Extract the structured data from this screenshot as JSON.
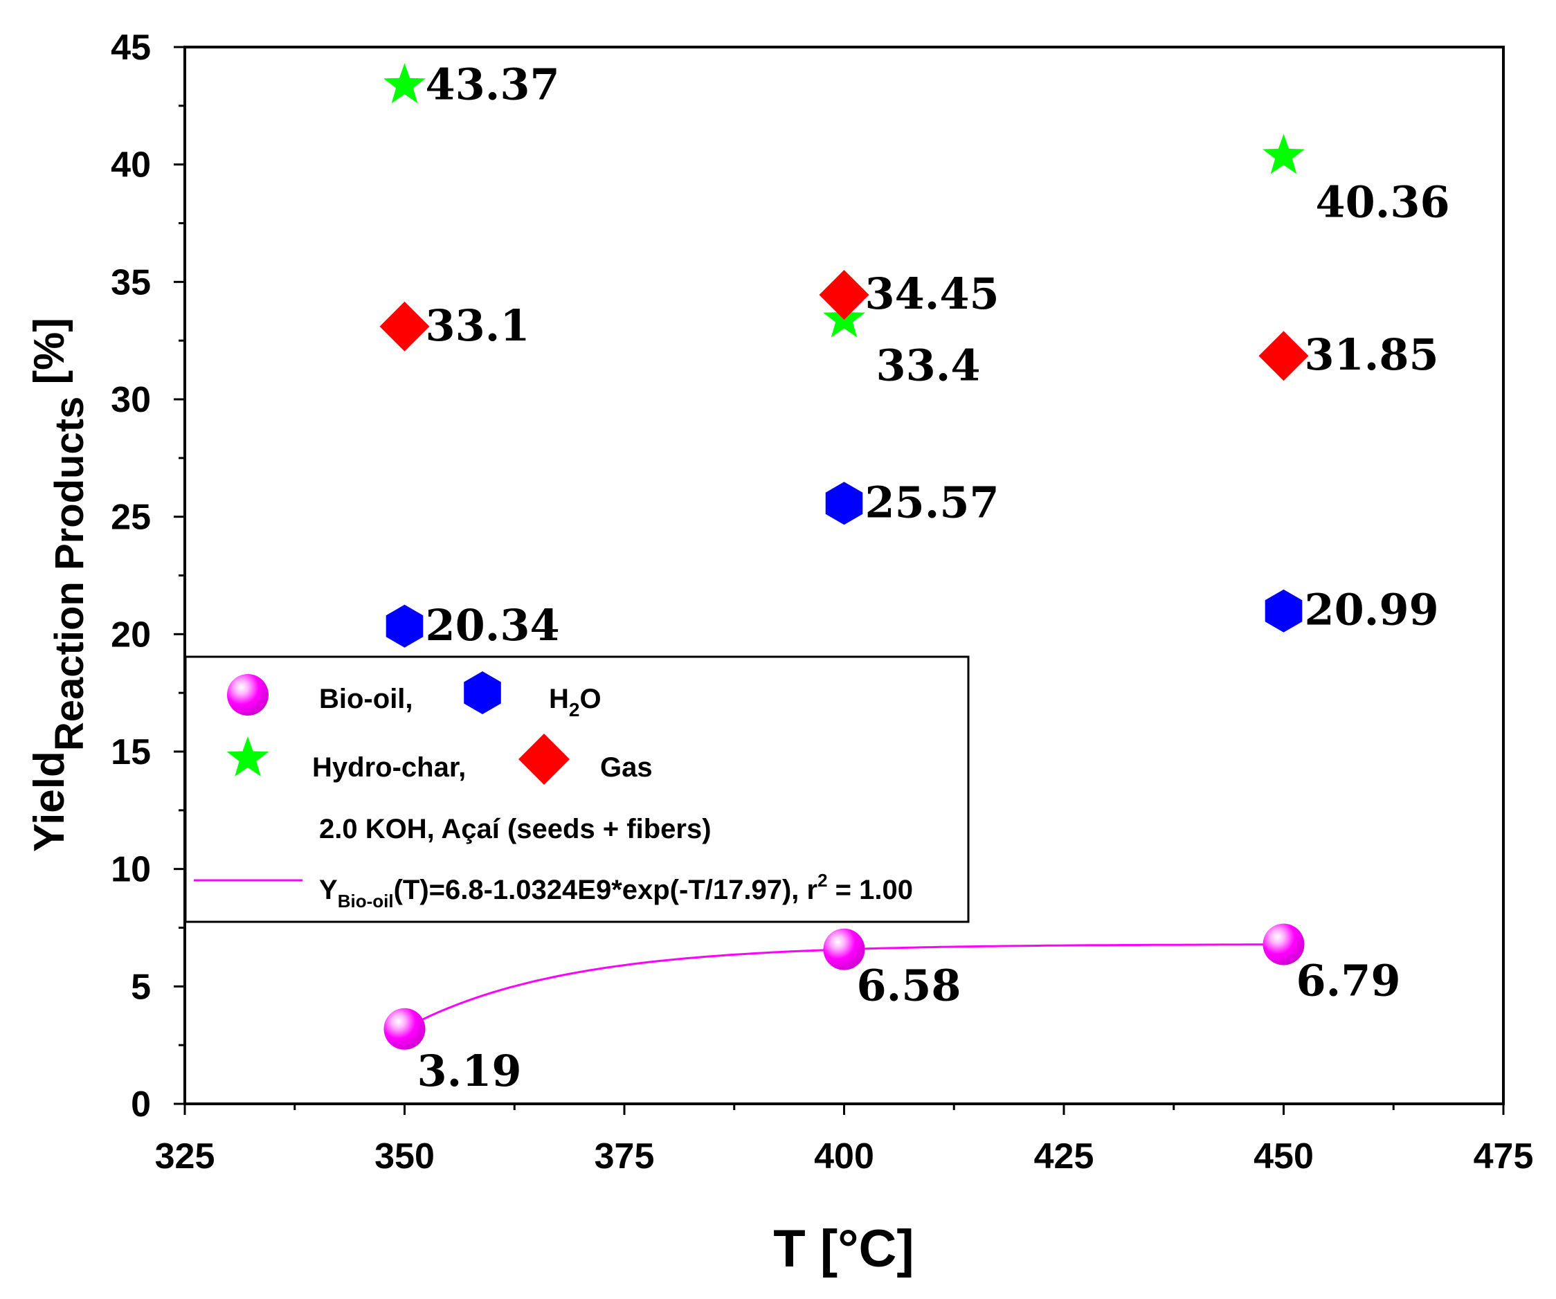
{
  "chart_data": {
    "type": "scatter",
    "xlabel": "T [°C]",
    "ylabel": {
      "main": "Yield",
      "sub": "Reaction Products",
      "tail": " [%]"
    },
    "xlim": [
      325,
      475
    ],
    "ylim": [
      0,
      45
    ],
    "x_ticks": [
      "325",
      "350",
      "375",
      "400",
      "425",
      "450",
      "475"
    ],
    "y_ticks": [
      "0",
      "5",
      "10",
      "15",
      "20",
      "25",
      "30",
      "35",
      "40",
      "45"
    ],
    "grid": false,
    "legend_position": "bottom-left",
    "colors": {
      "bio_oil": "#ff00ff",
      "h2o": "#0000ff",
      "hydro_char": "#00ff00",
      "gas": "#ff0000",
      "fit": "#ff00ff"
    },
    "series": [
      {
        "key": "bio_oil",
        "name": "Bio-oil,",
        "marker": "sphere",
        "x": [
          350,
          400,
          450
        ],
        "y": [
          3.19,
          6.58,
          6.79
        ],
        "labels": [
          "3.19",
          "6.58",
          "6.79"
        ]
      },
      {
        "key": "h2o",
        "name": "H2O",
        "marker": "hexagon",
        "x": [
          350,
          400,
          450
        ],
        "y": [
          20.34,
          25.57,
          20.99
        ],
        "labels": [
          "20.34",
          "25.57",
          "20.99"
        ]
      },
      {
        "key": "hydro_char",
        "name": "Hydro-char,",
        "marker": "star",
        "x": [
          350,
          400,
          450
        ],
        "y": [
          43.37,
          33.4,
          40.36
        ],
        "labels": [
          "43.37",
          "33.4",
          "40.36"
        ]
      },
      {
        "key": "gas",
        "name": "Gas",
        "marker": "diamond",
        "x": [
          350,
          400,
          450
        ],
        "y": [
          33.1,
          34.45,
          31.85
        ],
        "labels": [
          "33.1",
          "34.45",
          "31.85"
        ]
      }
    ],
    "fit": {
      "type": "line",
      "x_range": [
        350,
        450
      ],
      "equation": {
        "a": 6.8,
        "b": 1032400000,
        "t": 17.97
      },
      "legend": {
        "y": "Y",
        "sub": "Bio-oil",
        "rest": "(T)=6.8-1.0324E9*exp(-T/17.97), r",
        "sup": "2",
        "end": " = 1.00"
      }
    },
    "legend": {
      "bio_oil": "Bio-oil,",
      "h2o": {
        "h": "H",
        "sub": "2",
        "o": "O"
      },
      "hydro_char": "Hydro-char,",
      "gas": "Gas",
      "note": "2.0 KOH, Açaí (seeds + fibers)"
    }
  }
}
